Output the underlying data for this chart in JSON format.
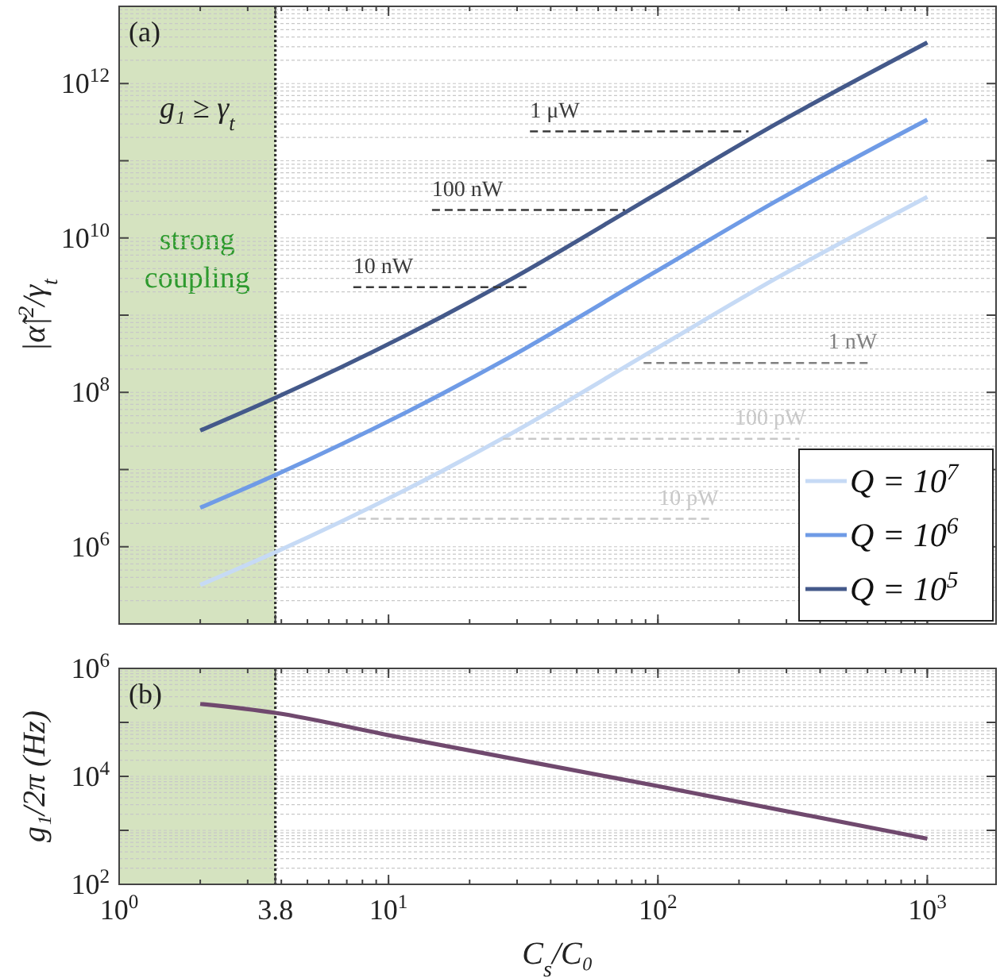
{
  "chart_data": [
    {
      "type": "line",
      "ylabel": "|α̃|$^{2}$/γ$_{t}$",
      "log": "xy",
      "grid": "y",
      "legend": "bottom right",
      "tick_labels": "y",
      "line_style": "solid",
      "xlim": [
        1,
        1800
      ],
      "xticks": [
        {
          "value": 1,
          "label": null
        },
        {
          "value": 3.8,
          "label": null
        },
        {
          "value": 10,
          "label": null
        },
        {
          "value": 100,
          "label": null
        },
        {
          "value": 1000,
          "label": null
        }
      ],
      "ylim": [
        100000.0,
        10000000000000.0
      ],
      "yticks": [
        {
          "value": 100000.0,
          "label": null
        },
        {
          "value": 1000000.0,
          "label": "10$^{6}$"
        },
        {
          "value": 10000000.0,
          "label": null
        },
        {
          "value": 100000000.0,
          "label": "10$^{8}$"
        },
        {
          "value": 1000000000.0,
          "label": null
        },
        {
          "value": 10000000000.0,
          "label": "10$^{10}$"
        },
        {
          "value": 100000000000.0,
          "label": null
        },
        {
          "value": 1000000000000.0,
          "label": "10$^{12}$"
        },
        {
          "value": 10000000000000.0,
          "label": null
        }
      ],
      "bands": [
        {
          "axis": "x",
          "from": 1,
          "to": 3.8,
          "label": "strong coupling",
          "color": "#d5e3c0"
        }
      ],
      "ref_lines": [
        {
          "axis": "x",
          "value": 3.8,
          "color": "#333333",
          "line_style": "dotted"
        }
      ],
      "annotations": [
        "(a)",
        "g₁ ≥ γ$_{t}$"
      ],
      "series": [
        {
          "name": "Q = 10$^{7}$",
          "color": "#c6daf5",
          "x": [
            2,
            3.8,
            16,
            27.4,
            96,
            275,
            1000
          ],
          "values": [
            320000.0,
            850000.0,
            9800000.0,
            27000000.0,
            350000000.0,
            3000000000.0,
            34000000000.0
          ]
        },
        {
          "name": "Q = 10$^{6}$",
          "color": "#6f9be6",
          "x": [
            2,
            3.8,
            16,
            27.4,
            96,
            275,
            1000
          ],
          "values": [
            3200000.0,
            8500000.0,
            98000000.0,
            270000000.0,
            3500000000.0,
            30000000000.0,
            340000000000.0
          ]
        },
        {
          "name": "Q = 10$^{5}$",
          "color": "#44598a",
          "x": [
            2,
            3.8,
            16,
            27.4,
            96,
            275,
            1000
          ],
          "values": [
            32000000.0,
            85000000.0,
            980000000.0,
            2700000000.0,
            35000000000.0,
            300000000000.0,
            3400000000000.0
          ]
        },
        {
          "name": "1 μW",
          "color": "#3a3a3a",
          "line_style": "dashed",
          "x": [
            33.5,
            217
          ],
          "values": [
            240000000000.0,
            240000000000.0
          ]
        },
        {
          "name": "100 nW",
          "color": "#3a3a3a",
          "line_style": "dashed",
          "x": [
            14.5,
            75.5
          ],
          "values": [
            23000000000.0,
            23000000000.0
          ]
        },
        {
          "name": "10 nW",
          "color": "#3a3a3a",
          "line_style": "dashed",
          "x": [
            7.4,
            32.7
          ],
          "values": [
            2300000000.0,
            2300000000.0
          ]
        },
        {
          "name": "1 nW",
          "color": "#808080",
          "line_style": "dashed",
          "x": [
            88.5,
            617
          ],
          "values": [
            240000000.0,
            240000000.0
          ]
        },
        {
          "name": "100 pW",
          "color": "#c8c8c8",
          "line_style": "dashed",
          "x": [
            26.6,
            335
          ],
          "values": [
            25000000.0,
            25000000.0
          ]
        },
        {
          "name": "10 pW",
          "color": "#c8c8c8",
          "line_style": "dashed",
          "x": [
            7.7,
            159
          ],
          "values": [
            2300000.0,
            2300000.0
          ]
        }
      ]
    },
    {
      "type": "line",
      "xlabel": "C$_{s}$/C₀",
      "ylabel": "g₁/2π (Hz)",
      "log": "xy",
      "grid": "y",
      "xlim": [
        1,
        1800
      ],
      "xticks": [
        {
          "value": 1,
          "label": "10$^{0}$"
        },
        {
          "value": 3.8,
          "label": "3.8"
        },
        {
          "value": 10,
          "label": "10$^{1}$"
        },
        {
          "value": 100,
          "label": "10$^{2}$"
        },
        {
          "value": 1000,
          "label": "10$^{3}$"
        }
      ],
      "ylim": [
        100,
        1000000.0
      ],
      "yticks": [
        {
          "value": 100,
          "label": "10$^{2}$"
        },
        {
          "value": 1000.0,
          "label": null
        },
        {
          "value": 10000.0,
          "label": "10$^{4}$"
        },
        {
          "value": 100000.0,
          "label": null
        },
        {
          "value": 1000000.0,
          "label": "10$^{6}$"
        }
      ],
      "bands": [
        {
          "axis": "x",
          "from": 1,
          "to": 3.8,
          "color": "#d5e3c0"
        }
      ],
      "ref_lines": [
        {
          "axis": "x",
          "value": 3.8,
          "color": "#333333",
          "line_style": "dotted"
        }
      ],
      "annotations": [
        "(b)"
      ],
      "series": [
        {
          "color": "#70496e",
          "x": [
            2,
            3.8,
            10,
            100,
            1000
          ],
          "values": [
            220000.0,
            150000.0,
            58000.0,
            6600.0,
            700.0
          ]
        }
      ]
    }
  ]
}
